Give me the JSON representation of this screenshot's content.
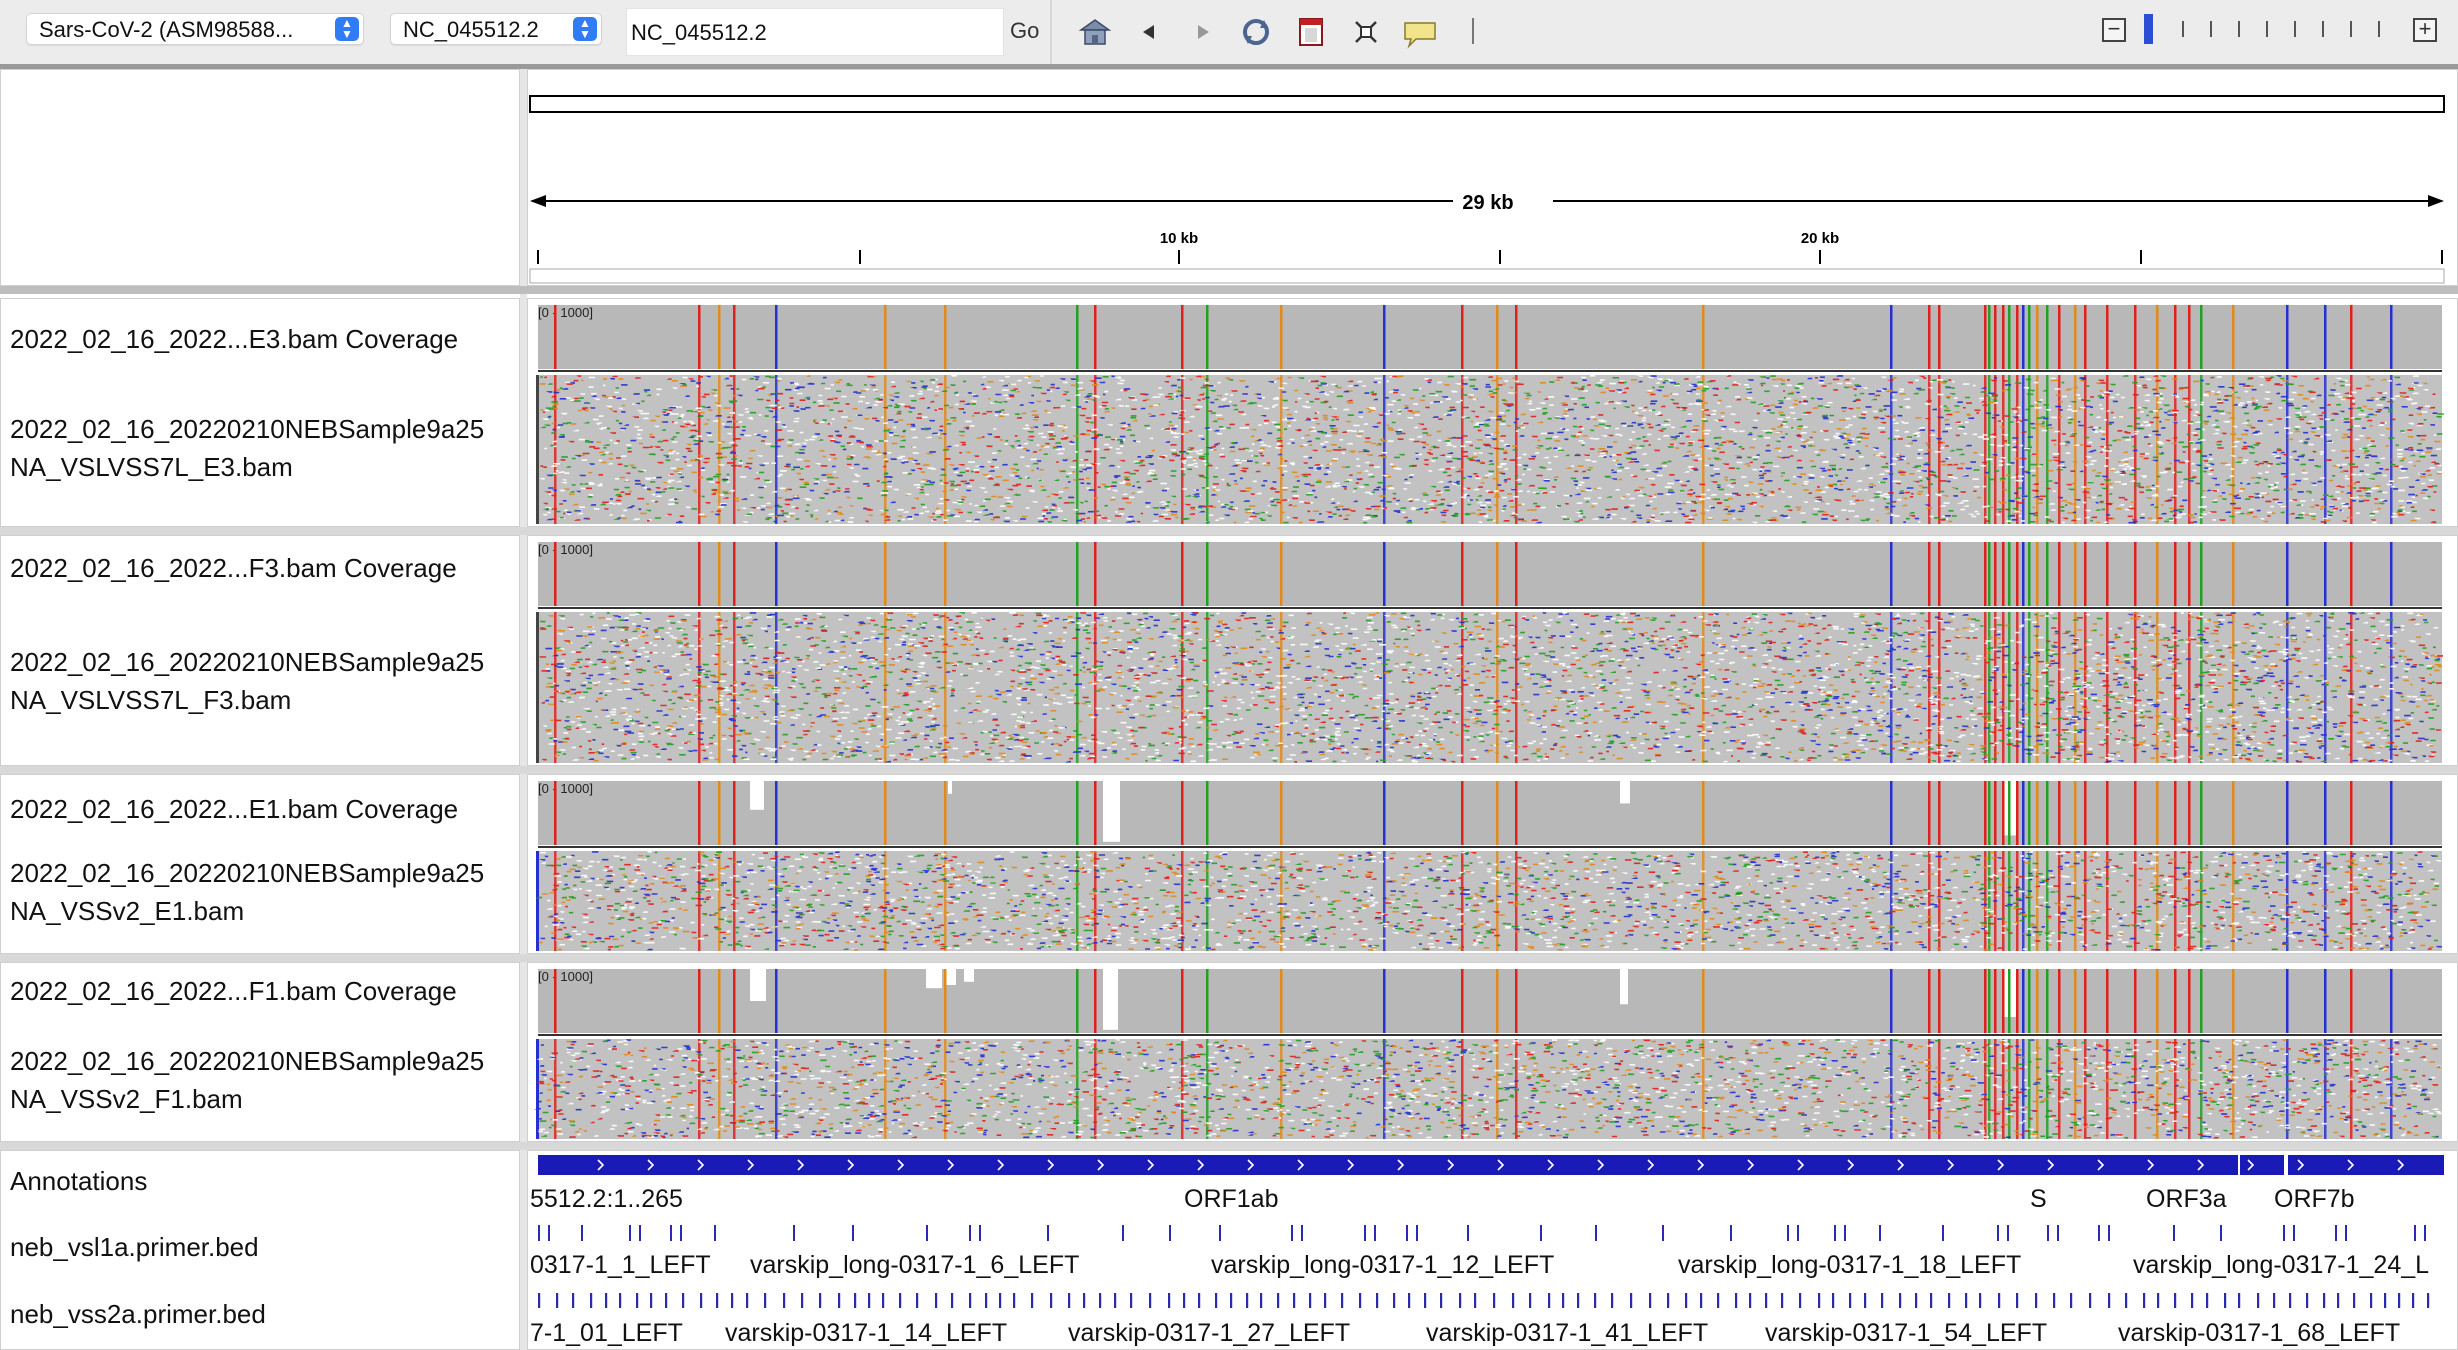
{
  "toolbar": {
    "genome_select": "Sars-CoV-2 (ASM98588...",
    "chromosome_select": "NC_045512.2",
    "locus_input": "NC_045512.2",
    "go_label": "Go",
    "icons": [
      "home-icon",
      "back-icon",
      "forward-icon",
      "refresh-icon",
      "roi-icon",
      "fit-to-window-icon",
      "popup-info-icon"
    ],
    "zoom_out_label": "−",
    "zoom_in_label": "+"
  },
  "ruler": {
    "span_label": "29 kb",
    "tick_labels": [
      "10 kb",
      "20 kb"
    ]
  },
  "panels": [
    {
      "coverage_name": "2022_02_16_2022...E3.bam Coverage",
      "alignment_name_line1": "2022_02_16_20220210NEBSample9a25",
      "alignment_name_line2": "NA_VSLVSS7L_E3.bam",
      "range": "[0 - 1000]"
    },
    {
      "coverage_name": "2022_02_16_2022...F3.bam Coverage",
      "alignment_name_line1": "2022_02_16_20220210NEBSample9a25",
      "alignment_name_line2": "NA_VSLVSS7L_F3.bam",
      "range": "[0 - 1000]"
    },
    {
      "coverage_name": "2022_02_16_2022...E1.bam Coverage",
      "alignment_name_line1": "2022_02_16_20220210NEBSample9a25",
      "alignment_name_line2": "NA_VSSv2_E1.bam",
      "range": "[0 - 1000]"
    },
    {
      "coverage_name": "2022_02_16_2022...F1.bam Coverage",
      "alignment_name_line1": "2022_02_16_20220210NEBSample9a25",
      "alignment_name_line2": "NA_VSSv2_F1.bam",
      "range": "[0 - 1000]"
    }
  ],
  "annotations": {
    "track_names": [
      "Annotations",
      "neb_vsl1a.primer.bed",
      "neb_vss2a.primer.bed"
    ],
    "gene_labels": [
      "5512.2:1..265",
      "ORF1ab",
      "S",
      "ORF3a",
      "ORF7b"
    ],
    "vsl1a_labels": [
      "0317-1_1_LEFT",
      "varskip_long-0317-1_6_LEFT",
      "varskip_long-0317-1_12_LEFT",
      "varskip_long-0317-1_18_LEFT",
      "varskip_long-0317-1_24_L"
    ],
    "vss2a_labels": [
      "7-1_01_LEFT",
      "varskip-0317-1_14_LEFT",
      "varskip-0317-1_27_LEFT",
      "varskip-0317-1_41_LEFT",
      "varskip-0317-1_54_LEFT",
      "varskip-0317-1_68_LEFT"
    ]
  },
  "colors": {
    "coverage_gray": "#b8b8b8",
    "read_gray": "#c2c2c2",
    "snp_red": "#e0201c",
    "snp_orange": "#e08a1c",
    "snp_blue": "#2430d0",
    "snp_green": "#22a022",
    "gene_blue": "#1a1ab8",
    "primer_blue": "#2a2ab0"
  }
}
